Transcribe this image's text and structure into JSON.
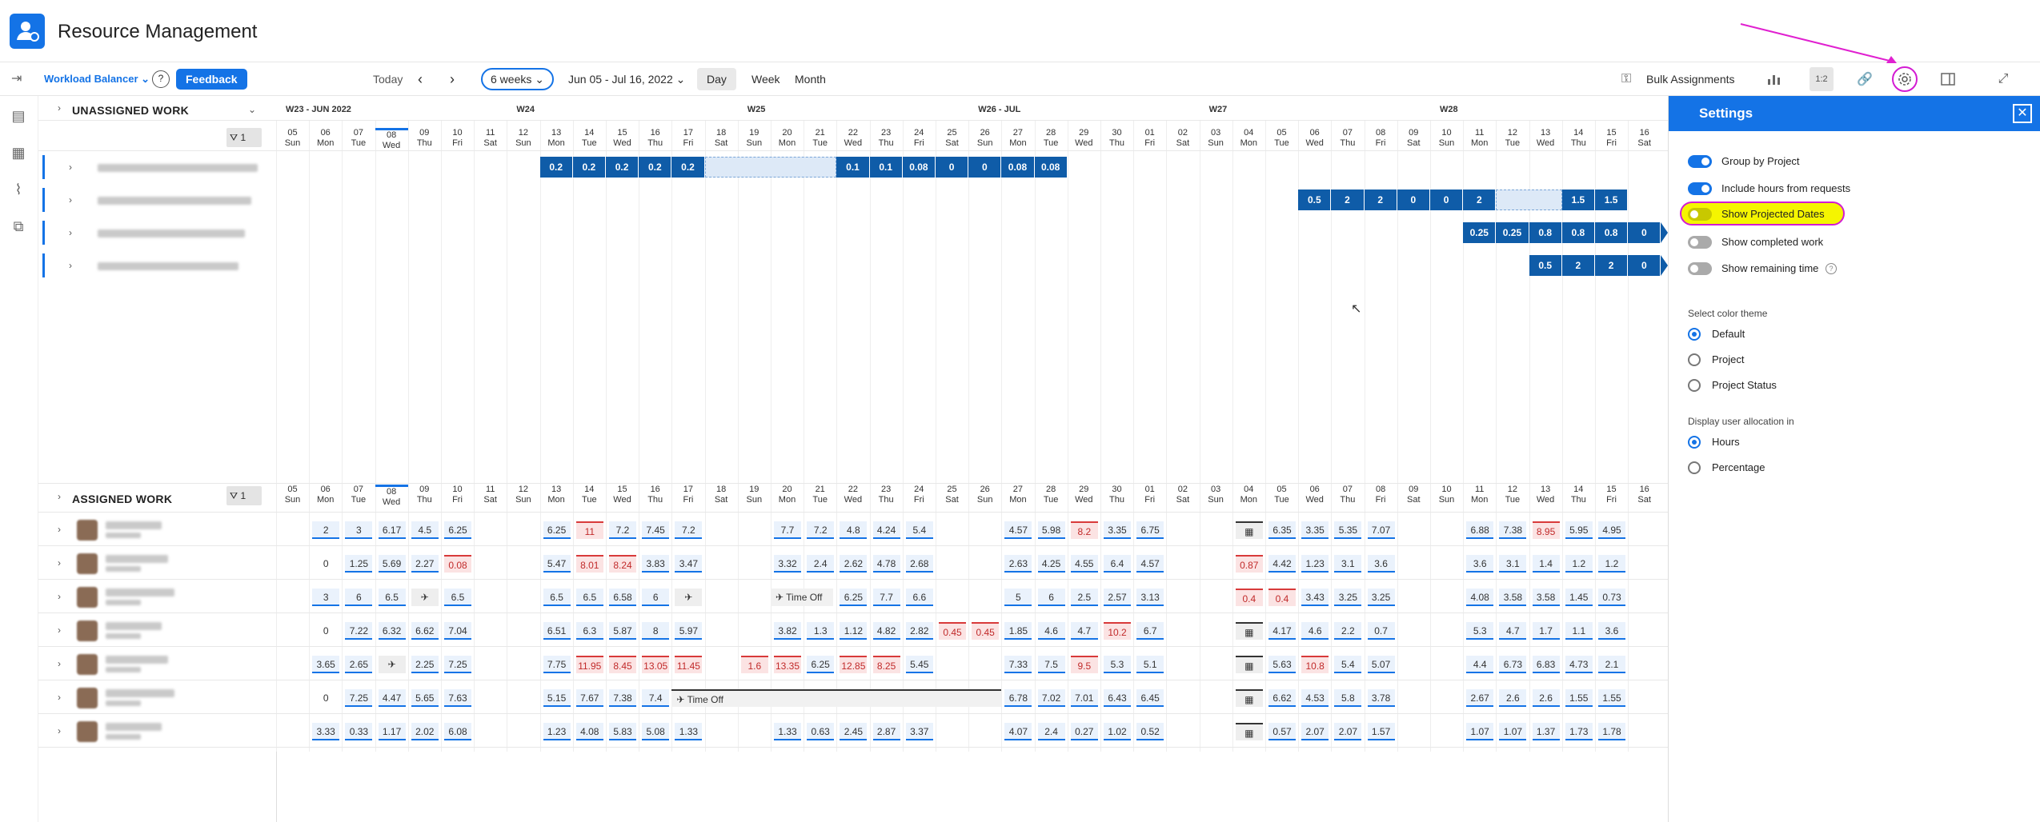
{
  "app": {
    "title": "Resource Management"
  },
  "toolbar": {
    "workload_label": "Workload Balancer",
    "feedback_label": "Feedback",
    "today_label": "Today",
    "range_label": "6 weeks",
    "date_range": "Jun 05 - Jul 16, 2022",
    "views": [
      "Day",
      "Week",
      "Month"
    ],
    "bulk_label": "Bulk Assignments",
    "ratio_label": "1:2"
  },
  "unassigned": {
    "title": "UNASSIGNED WORK",
    "filter_count": "1",
    "weeks": [
      "W23 - JUN 2022",
      "W24",
      "W25",
      "W26 - JUL",
      "W27",
      "W28"
    ],
    "rows": [
      {
        "start": 8,
        "vals": [
          "0.2",
          "0.2",
          "0.2",
          "0.2",
          "0.2"
        ],
        "dash": 4,
        "vals2": [
          "0.1",
          "0.1",
          "0.08",
          "0",
          "0",
          "0.08",
          "0.08"
        ]
      },
      {
        "start": 31,
        "vals": [
          "0.5",
          "2",
          "2",
          "0",
          "0",
          "2"
        ],
        "dash": 2,
        "vals2": [
          "1.5",
          "1.5"
        ]
      },
      {
        "start": 36,
        "vals": [
          "0.25",
          "0.25",
          "0.8",
          "0.8",
          "0.8",
          "0"
        ],
        "dash": 0,
        "vals2": []
      },
      {
        "start": 38,
        "vals": [
          "0.5",
          "2",
          "2",
          "0"
        ],
        "dash": 0,
        "vals2": []
      }
    ]
  },
  "assigned": {
    "title": "ASSIGNED WORK",
    "filter_count": "1",
    "time_off_label": "Time Off",
    "rows": [
      [
        "",
        "2",
        "3",
        "6.17",
        "4.5",
        "6.25",
        "",
        "",
        "6.25",
        "11",
        "7.2",
        "7.45",
        "7.2",
        "",
        "",
        "7.7",
        "7.2",
        "4.8",
        "4.24",
        "5.4",
        "",
        "",
        "4.57",
        "5.98",
        "8.2",
        "3.35",
        "6.75",
        "",
        "",
        "cal",
        "6.35",
        "3.35",
        "5.35",
        "7.07",
        "",
        "",
        "6.88",
        "7.38",
        "8.95",
        "5.95",
        "4.95",
        ""
      ],
      [
        "",
        "0",
        "1.25",
        "5.69",
        "2.27",
        "0.08",
        "",
        "",
        "5.47",
        "8.01",
        "8.24",
        "3.83",
        "3.47",
        "",
        "",
        "3.32",
        "2.4",
        "2.62",
        "4.78",
        "2.68",
        "",
        "",
        "2.63",
        "4.25",
        "4.55",
        "6.4",
        "4.57",
        "",
        "",
        "0.87",
        "4.42",
        "1.23",
        "3.1",
        "3.6",
        "",
        "",
        "3.6",
        "3.1",
        "1.4",
        "1.2",
        "1.2",
        ""
      ],
      [
        "",
        "3",
        "6",
        "6.5",
        "tool",
        "6.5",
        "",
        "",
        "6.5",
        "6.5",
        "6.58",
        "6",
        "tool",
        "",
        "",
        "TO",
        "TO",
        "6.25",
        "7.7",
        "6.6",
        "",
        "",
        "5",
        "6",
        "2.5",
        "2.57",
        "3.13",
        "",
        "",
        "0.4",
        "0.4",
        "3.43",
        "3.25",
        "3.25",
        "",
        "",
        "4.08",
        "3.58",
        "3.58",
        "1.45",
        "0.73",
        ""
      ],
      [
        "",
        "0",
        "7.22",
        "6.32",
        "6.62",
        "7.04",
        "",
        "",
        "6.51",
        "6.3",
        "5.87",
        "8",
        "5.97",
        "",
        "",
        "3.82",
        "1.3",
        "1.12",
        "4.82",
        "2.82",
        "0.45",
        "0.45",
        "1.85",
        "4.6",
        "4.7",
        "10.2",
        "6.7",
        "",
        "",
        "cal",
        "4.17",
        "4.6",
        "2.2",
        "0.7",
        "",
        "",
        "5.3",
        "4.7",
        "1.7",
        "1.1",
        "3.6",
        ""
      ],
      [
        "",
        "3.65",
        "2.65",
        "tool",
        "2.25",
        "7.25",
        "",
        "",
        "7.75",
        "11.95",
        "8.45",
        "13.05",
        "11.45",
        "",
        "1.6",
        "13.35",
        "6.25",
        "12.85",
        "8.25",
        "5.45",
        "",
        "",
        "7.33",
        "7.5",
        "9.5",
        "5.3",
        "5.1",
        "",
        "",
        "cal",
        "5.63",
        "10.8",
        "5.4",
        "5.07",
        "",
        "",
        "4.4",
        "6.73",
        "6.83",
        "4.73",
        "2.1",
        ""
      ],
      [
        "",
        "0",
        "7.25",
        "4.47",
        "5.65",
        "7.63",
        "",
        "",
        "5.15",
        "7.67",
        "7.38",
        "7.4",
        "TO",
        "",
        "",
        "",
        "",
        "",
        "",
        "",
        "",
        "",
        "6.78",
        "7.02",
        "7.01",
        "6.43",
        "6.45",
        "",
        "",
        "cal",
        "6.62",
        "4.53",
        "5.8",
        "3.78",
        "",
        "",
        "2.67",
        "2.6",
        "2.6",
        "1.55",
        "1.55",
        ""
      ],
      [
        "",
        "3.33",
        "0.33",
        "1.17",
        "2.02",
        "6.08",
        "",
        "",
        "1.23",
        "4.08",
        "5.83",
        "5.08",
        "1.33",
        "",
        "",
        "1.33",
        "0.63",
        "2.45",
        "2.87",
        "3.37",
        "",
        "",
        "4.07",
        "2.4",
        "0.27",
        "1.02",
        "0.52",
        "",
        "",
        "cal",
        "0.57",
        "2.07",
        "2.07",
        "1.57",
        "",
        "",
        "1.07",
        "1.07",
        "1.37",
        "1.73",
        "1.78",
        ""
      ]
    ],
    "red_cells": [
      [
        0,
        9
      ],
      [
        0,
        24
      ],
      [
        0,
        38
      ],
      [
        1,
        5
      ],
      [
        1,
        9
      ],
      [
        1,
        10
      ],
      [
        1,
        29
      ],
      [
        2,
        29
      ],
      [
        2,
        30
      ],
      [
        3,
        20
      ],
      [
        3,
        21
      ],
      [
        3,
        25
      ],
      [
        4,
        9
      ],
      [
        4,
        10
      ],
      [
        4,
        11
      ],
      [
        4,
        12
      ],
      [
        4,
        14
      ],
      [
        4,
        15
      ],
      [
        4,
        17
      ],
      [
        4,
        18
      ],
      [
        4,
        24
      ],
      [
        4,
        31
      ]
    ]
  },
  "days": [
    [
      "05",
      "Sun"
    ],
    [
      "06",
      "Mon"
    ],
    [
      "07",
      "Tue"
    ],
    [
      "08",
      "Wed"
    ],
    [
      "09",
      "Thu"
    ],
    [
      "10",
      "Fri"
    ],
    [
      "11",
      "Sat"
    ],
    [
      "12",
      "Sun"
    ],
    [
      "13",
      "Mon"
    ],
    [
      "14",
      "Tue"
    ],
    [
      "15",
      "Wed"
    ],
    [
      "16",
      "Thu"
    ],
    [
      "17",
      "Fri"
    ],
    [
      "18",
      "Sat"
    ],
    [
      "19",
      "Sun"
    ],
    [
      "20",
      "Mon"
    ],
    [
      "21",
      "Tue"
    ],
    [
      "22",
      "Wed"
    ],
    [
      "23",
      "Thu"
    ],
    [
      "24",
      "Fri"
    ],
    [
      "25",
      "Sat"
    ],
    [
      "26",
      "Sun"
    ],
    [
      "27",
      "Mon"
    ],
    [
      "28",
      "Tue"
    ],
    [
      "29",
      "Wed"
    ],
    [
      "30",
      "Thu"
    ],
    [
      "01",
      "Fri"
    ],
    [
      "02",
      "Sat"
    ],
    [
      "03",
      "Sun"
    ],
    [
      "04",
      "Mon"
    ],
    [
      "05",
      "Tue"
    ],
    [
      "06",
      "Wed"
    ],
    [
      "07",
      "Thu"
    ],
    [
      "08",
      "Fri"
    ],
    [
      "09",
      "Sat"
    ],
    [
      "10",
      "Sun"
    ],
    [
      "11",
      "Mon"
    ],
    [
      "12",
      "Tue"
    ],
    [
      "13",
      "Wed"
    ],
    [
      "14",
      "Thu"
    ],
    [
      "15",
      "Fri"
    ],
    [
      "16",
      "Sat"
    ]
  ],
  "settings": {
    "title": "Settings",
    "toggles": [
      {
        "label": "Group by Project",
        "on": true
      },
      {
        "label": "Include hours from requests",
        "on": true
      },
      {
        "label": "Show Projected Dates",
        "on": false
      },
      {
        "label": "Show completed work",
        "on": false
      },
      {
        "label": "Show remaining time",
        "on": false
      }
    ],
    "theme_heading": "Select color theme",
    "themes": [
      {
        "label": "Default",
        "selected": true
      },
      {
        "label": "Project",
        "selected": false
      },
      {
        "label": "Project Status",
        "selected": false
      }
    ],
    "alloc_heading": "Display user allocation in",
    "alloc": [
      {
        "label": "Hours",
        "selected": true
      },
      {
        "label": "Percentage",
        "selected": false
      }
    ]
  }
}
